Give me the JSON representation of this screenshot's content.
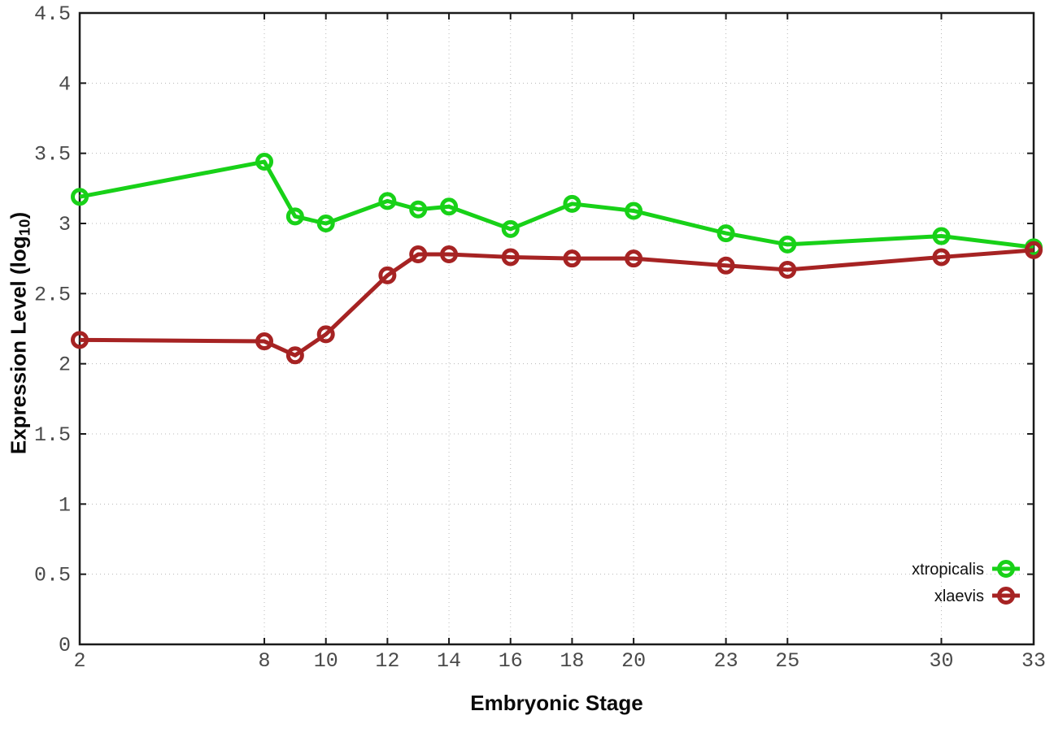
{
  "chart_data": {
    "type": "line",
    "title": "",
    "xlabel": "Embryonic Stage",
    "ylabel": "Expression Level (log10)",
    "ylabel_parts": {
      "main": "Expression Level (log",
      "sub": "10",
      "close": ")"
    },
    "x": [
      2,
      8,
      9,
      10,
      12,
      13,
      14,
      16,
      18,
      20,
      23,
      25,
      30,
      33
    ],
    "series": [
      {
        "name": "xtropicalis",
        "color": "#18d118",
        "values": [
          3.19,
          3.44,
          3.05,
          3.0,
          3.16,
          3.1,
          3.12,
          2.96,
          3.14,
          3.09,
          2.93,
          2.85,
          2.91,
          2.83
        ]
      },
      {
        "name": "xlaevis",
        "color": "#a62323",
        "values": [
          2.17,
          2.16,
          2.06,
          2.21,
          2.63,
          2.78,
          2.78,
          2.76,
          2.75,
          2.75,
          2.7,
          2.67,
          2.76,
          2.81
        ]
      }
    ],
    "xlim": [
      2,
      33
    ],
    "ylim": [
      0,
      4.5
    ],
    "x_ticks": [
      2,
      8,
      10,
      12,
      14,
      16,
      18,
      20,
      23,
      25,
      30,
      33
    ],
    "x_tick_labels": [
      "2",
      "8",
      "10",
      "12",
      "14",
      "16",
      "18",
      "20",
      "23",
      "25",
      "30",
      "33"
    ],
    "y_ticks": [
      0,
      0.5,
      1,
      1.5,
      2,
      2.5,
      3,
      3.5,
      4,
      4.5
    ],
    "y_tick_labels": [
      "0",
      "0.5",
      "1",
      "1.5",
      "2",
      "2.5",
      "3",
      "3.5",
      "4",
      "4.5"
    ],
    "grid": true,
    "legend_position": "bottom-right",
    "marker": "open-circle",
    "background": "#ffffff",
    "grid_color": "#b8b8b8",
    "axis_color": "#1a1a1a"
  }
}
